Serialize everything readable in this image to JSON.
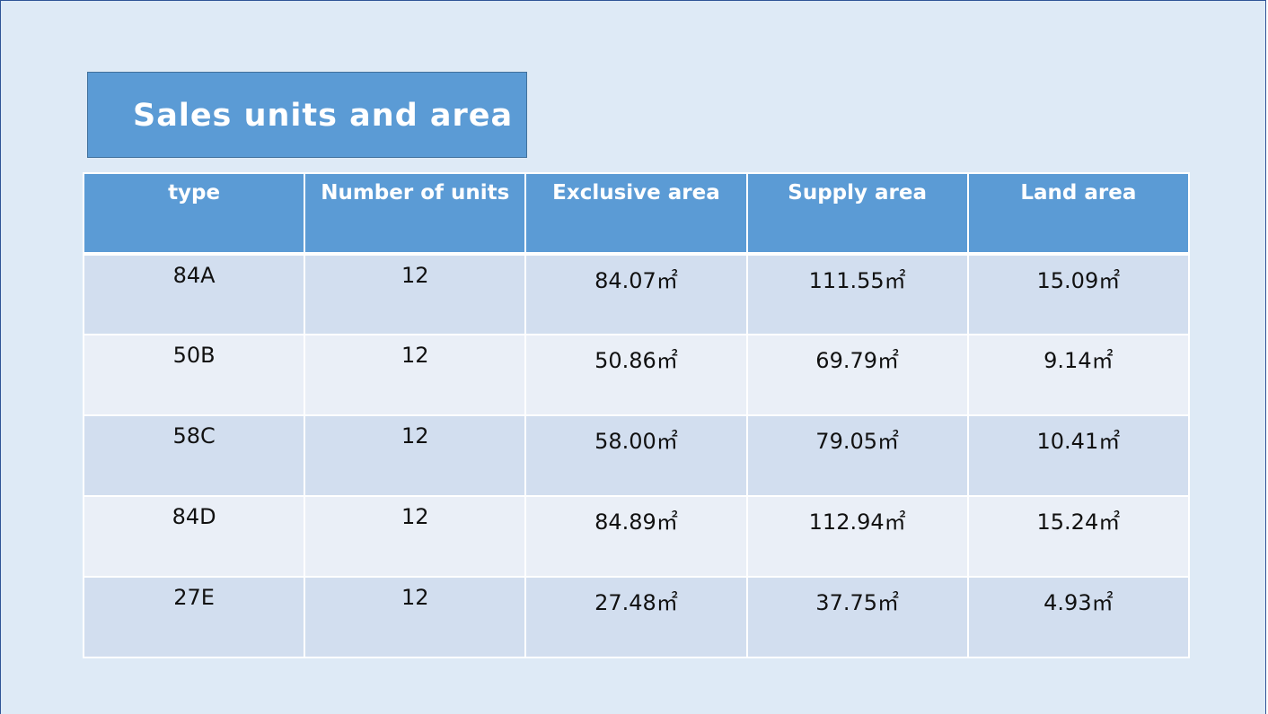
{
  "title": "Sales units and area",
  "table": {
    "headers": [
      "type",
      "Number of units",
      "Exclusive area",
      "Supply area",
      "Land area"
    ],
    "rows": [
      [
        "84A",
        "12",
        "84.07㎡",
        "111.55㎡",
        "15.09㎡"
      ],
      [
        "50B",
        "12",
        "50.86㎡",
        "69.79㎡",
        "9.14㎡"
      ],
      [
        "58C",
        "12",
        "58.00㎡",
        "79.05㎡",
        "10.41㎡"
      ],
      [
        "84D",
        "12",
        "84.89㎡",
        "112.94㎡",
        "15.24㎡"
      ],
      [
        "27E",
        "12",
        "27.48㎡",
        "37.75㎡",
        "4.93㎡"
      ]
    ]
  },
  "colors": {
    "slide_background": "#deeaf6",
    "accent": "#5b9bd5",
    "row_dark": "#d2deef",
    "row_light": "#eaeff7"
  }
}
